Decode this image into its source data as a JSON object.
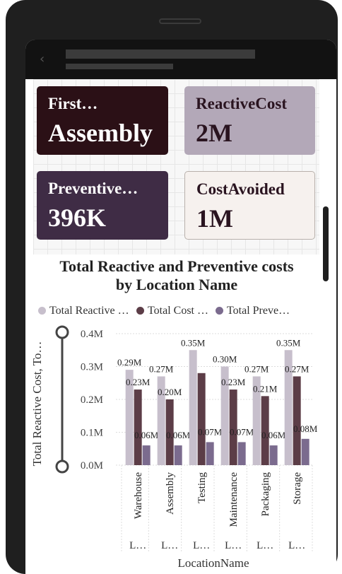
{
  "appbar": {
    "back_icon": "chevron-left-icon"
  },
  "cards": [
    {
      "label": "First…",
      "value": "Assembly",
      "color": "#2b1016"
    },
    {
      "label": "ReactiveCost",
      "value": "2M",
      "color": "#b3a8b8"
    },
    {
      "label": "Preventive…",
      "value": "396K",
      "color": "#3f2c45"
    },
    {
      "label": "CostAvoided",
      "value": "1M",
      "color": "#f6f1ee"
    }
  ],
  "chart_title_line1": "Total Reactive and Preventive costs",
  "chart_title_line2": "by Location Name",
  "chart_data": {
    "type": "bar",
    "title": "Total Reactive and Preventive costs by Location Name",
    "xlabel": "LocationName",
    "ylabel": "Total Reactive Cost, To…",
    "ylim": [
      0,
      0.4
    ],
    "yticks": [
      "0.0M",
      "0.1M",
      "0.2M",
      "0.3M",
      "0.4M"
    ],
    "categories": [
      "Warehouse",
      "Assembly",
      "Testing",
      "Maintenance",
      "Packaging",
      "Storage"
    ],
    "category_group_labels": [
      "L…",
      "L…",
      "L…",
      "L…",
      "L…",
      "L…"
    ],
    "series": [
      {
        "name": "Total Reactive …",
        "color": "#c7bfcc",
        "values": [
          0.29,
          0.27,
          0.35,
          0.3,
          0.27,
          0.35
        ],
        "labels": [
          "0.29M",
          "0.27M",
          "0.35M",
          "0.30M",
          "0.27M",
          "0.35M"
        ]
      },
      {
        "name": "Total Cost …",
        "color": "#5c3d47",
        "values": [
          0.23,
          0.2,
          0.28,
          0.23,
          0.21,
          0.27
        ],
        "labels": [
          "0.23M",
          "0.20M",
          "",
          "0.23M",
          "0.21M",
          "0.27M"
        ]
      },
      {
        "name": "Total Preve…",
        "color": "#7b6b8e",
        "values": [
          0.06,
          0.06,
          0.07,
          0.07,
          0.06,
          0.08
        ],
        "labels": [
          "0.06M",
          "0.06M",
          "0.07M",
          "0.07M",
          "0.06M",
          "0.08M"
        ]
      }
    ],
    "legend": "top",
    "grid": true
  }
}
